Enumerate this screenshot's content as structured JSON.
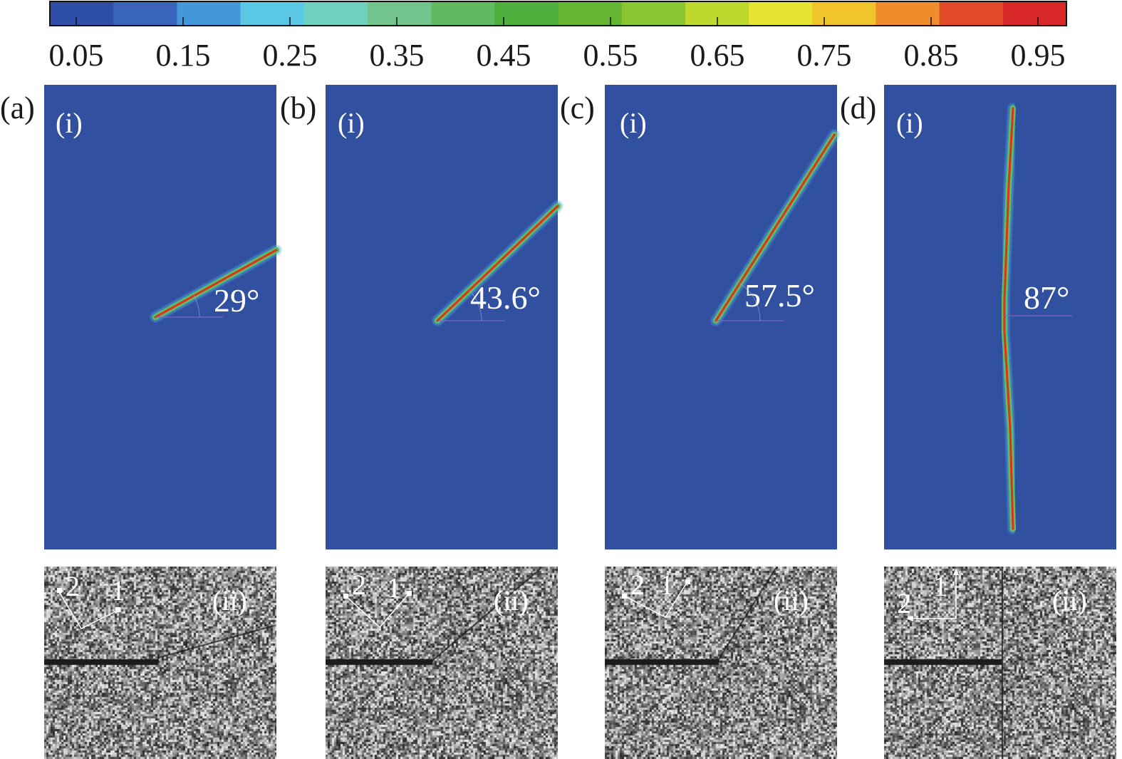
{
  "colorbar": {
    "ticks": [
      "0.05",
      "0.15",
      "0.25",
      "0.35",
      "0.45",
      "0.55",
      "0.65",
      "0.75",
      "0.85",
      "0.95"
    ],
    "colors": [
      "#2f4ea8",
      "#3a63bc",
      "#4498da",
      "#5ac8e4",
      "#6fd0c0",
      "#72c38c",
      "#5fba62",
      "#4faf3c",
      "#64b632",
      "#8ac631",
      "#bfd82e",
      "#e6e430",
      "#f1c42c",
      "#ef8c2b",
      "#e34a2a",
      "#d82828"
    ]
  },
  "field_color": "#3250a0",
  "panels": [
    {
      "letter": "(a)",
      "sub_top": "(i)",
      "sub_bottom": "(ii)",
      "angle_deg": 29,
      "angle_label": "29°",
      "axis_label_2": "2",
      "axis_label_1": "1",
      "crack_style": "inclined"
    },
    {
      "letter": "(b)",
      "sub_top": "(i)",
      "sub_bottom": "(ii)",
      "angle_deg": 43.6,
      "angle_label": "43.6°",
      "axis_label_2": "2",
      "axis_label_1": "1",
      "crack_style": "inclined"
    },
    {
      "letter": "(c)",
      "sub_top": "(i)",
      "sub_bottom": "(ii)",
      "angle_deg": 57.5,
      "angle_label": "57.5°",
      "axis_label_2": "2",
      "axis_label_1": "1",
      "crack_style": "inclined"
    },
    {
      "letter": "(d)",
      "sub_top": "(i)",
      "sub_bottom": "(ii)",
      "angle_deg": 87,
      "angle_label": "87°",
      "axis_label_2": "2",
      "axis_label_1": "1",
      "crack_style": "vertical"
    }
  ]
}
